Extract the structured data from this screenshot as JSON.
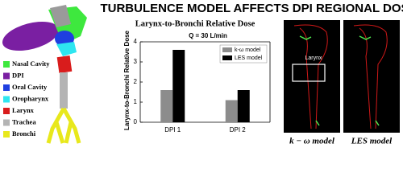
{
  "header": {
    "title": "TURBULENCE MODEL AFFECTS DPI REGIONAL DOSES"
  },
  "anatomy_legend": [
    {
      "label": "Nasal Cavity",
      "color": "#3ee83e"
    },
    {
      "label": "DPI",
      "color": "#7a1fa2"
    },
    {
      "label": "Oral Cavity",
      "color": "#1f3fe0"
    },
    {
      "label": "Oropharynx",
      "color": "#2ee6f0"
    },
    {
      "label": "Larynx",
      "color": "#d91c1c"
    },
    {
      "label": "Trachea",
      "color": "#b4b4b4"
    },
    {
      "label": "Bronchi",
      "color": "#e8e81c"
    }
  ],
  "chart_data": {
    "type": "bar",
    "title": "Larynx-to-Bronchi Relative Dose",
    "subtitle": "Q = 30 L/min",
    "y_label": "Larynx-to-Bronchi Relative Dose",
    "categories": [
      "DPI 1",
      "DPI 2"
    ],
    "series": [
      {
        "name": "k-ω model",
        "color": "#8c8c8c",
        "values": [
          1.6,
          1.1
        ]
      },
      {
        "name": "LES model",
        "color": "#000000",
        "values": [
          3.6,
          1.6
        ]
      }
    ],
    "ylim": [
      0,
      4
    ],
    "yticks": [
      0,
      1,
      2,
      3,
      4
    ],
    "legend": "upper right"
  },
  "images": {
    "box_label": "Larynx",
    "captions": [
      "k − ω model",
      "LES model"
    ]
  }
}
